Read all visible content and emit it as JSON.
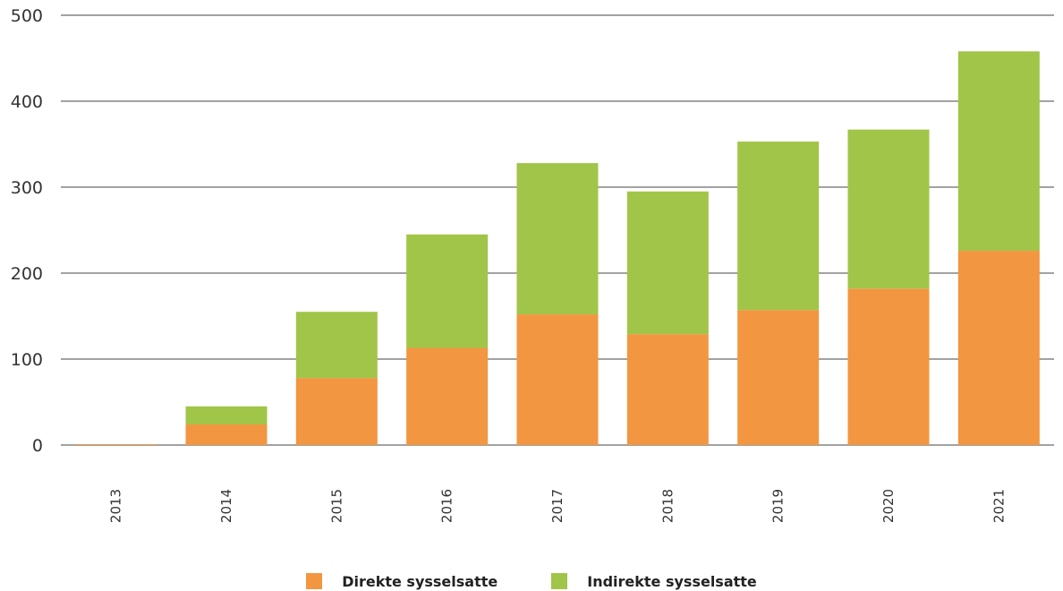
{
  "chart_data": {
    "type": "bar",
    "stacked": true,
    "categories": [
      "2013",
      "2014",
      "2015",
      "2016",
      "2017",
      "2018",
      "2019",
      "2020",
      "2021"
    ],
    "series": [
      {
        "name": "Direkte sysselsatte",
        "color": "#F29641",
        "values": [
          1,
          24,
          78,
          113,
          152,
          129,
          157,
          182,
          226
        ]
      },
      {
        "name": "Indirekte sysselsatte",
        "color": "#A1C548",
        "values": [
          0,
          21,
          77,
          132,
          176,
          166,
          196,
          185,
          232
        ]
      }
    ],
    "ylim": [
      0,
      500
    ],
    "yticks": [
      "0",
      "100",
      "200",
      "300",
      "400",
      "500"
    ],
    "grid": true,
    "legend_position": "bottom",
    "title": "",
    "xlabel": "",
    "ylabel": ""
  }
}
